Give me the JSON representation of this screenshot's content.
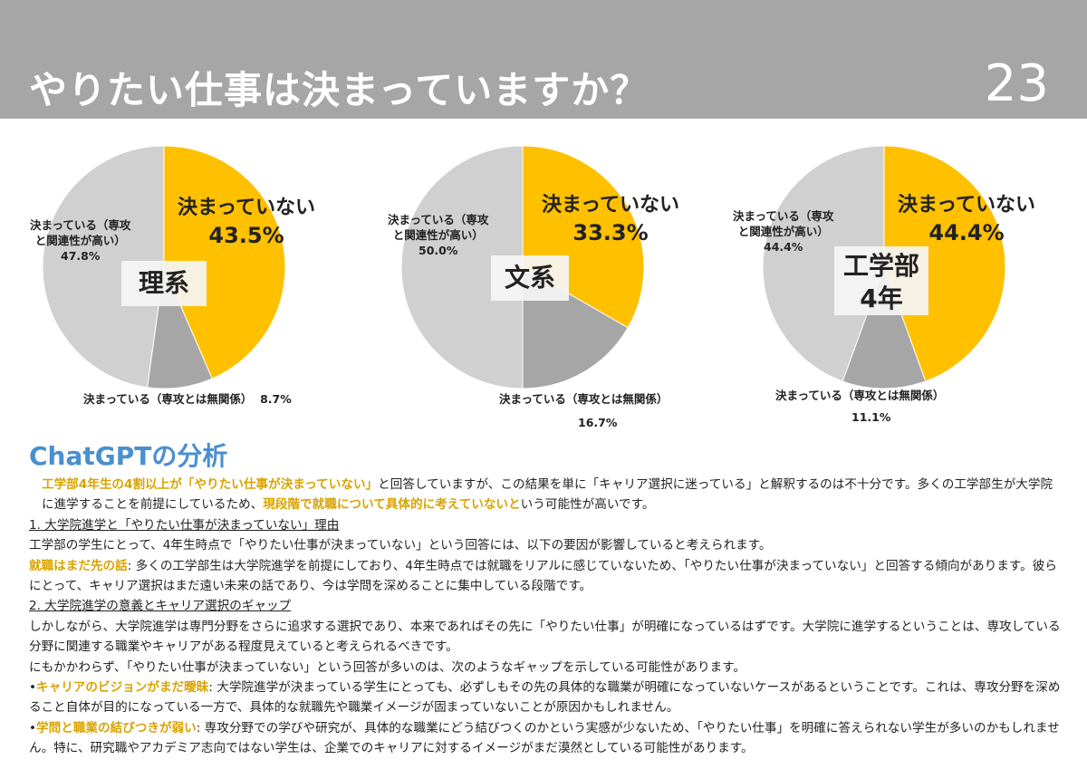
{
  "header": {
    "title": "やりたい仕事は決まっていますか？",
    "page_number": "23"
  },
  "colors": {
    "not_decided": "#ffc000",
    "unrelated": "#a6a6a6",
    "related": "#d0d0d0",
    "accent_text": "#d9a300",
    "analysis_title": "#4a8fd0"
  },
  "chart_data": [
    {
      "type": "pie",
      "category_label": "理系",
      "slices": [
        {
          "label": "決まっていない",
          "value": 43.5,
          "value_label": "43.5%"
        },
        {
          "label": "決まっている（専攻とは無関係）",
          "value": 8.7,
          "value_label": "8.7%"
        },
        {
          "label": "決まっている（専攻と関連性が高い）",
          "value": 47.8,
          "value_label": "47.8%"
        }
      ]
    },
    {
      "type": "pie",
      "category_label": "文系",
      "slices": [
        {
          "label": "決まっていない",
          "value": 33.3,
          "value_label": "33.3%"
        },
        {
          "label": "決まっている（専攻とは無関係）",
          "value": 16.7,
          "value_label": "16.7%"
        },
        {
          "label": "決まっている（専攻と関連性が高い）",
          "value": 50.0,
          "value_label": "50.0%"
        }
      ]
    },
    {
      "type": "pie",
      "category_label": "工学部 4年",
      "slices": [
        {
          "label": "決まっていない",
          "value": 44.4,
          "value_label": "44.4%"
        },
        {
          "label": "決まっている（専攻とは無関係）",
          "value": 11.1,
          "value_label": "11.1%"
        },
        {
          "label": "決まっている（専攻と関連性が高い）",
          "value": 44.4,
          "value_label": "44.4%"
        }
      ]
    }
  ],
  "labels": {
    "not_decided": "決まっていない",
    "related_line1": "決まっている（専攻",
    "related_line2": "と関連性が高い）",
    "unrelated": "決まっている（専攻とは無関係）",
    "cat1": "理系",
    "cat2": "文系",
    "cat3_line1": "工学部",
    "cat3_line2": "4年"
  },
  "analysis": {
    "title": "ChatGPTの分析",
    "p1_hl1": "工学部4年生の4割以上が「やりたい仕事が決まっていない」",
    "p1_t1": "と回答していますが、この結果を単に「キャリア選択に迷っている」と解釈するのは不十分です。多くの工学部生が大学院に進学することを前提にしているため、",
    "p1_hl2": "現段階で就職について具体的に考えていないと",
    "p1_t2": "いう可能性が高いです。",
    "h1": "1. 大学院進学と「やりたい仕事が決まっていない」理由",
    "p2": "工学部の学生にとって、4年生時点で「やりたい仕事が決まっていない」という回答には、以下の要因が影響していると考えられます。",
    "p3_hl": "就職はまだ先の話",
    "p3_t": ": 多くの工学部生は大学院進学を前提にしており、4年生時点では就職をリアルに感じていないため、「やりたい仕事が決まっていない」と回答する傾向があります。彼らにとって、キャリア選択はまだ遠い未来の話であり、今は学問を深めることに集中している段階です。",
    "h2": "2. 大学院進学の意義とキャリア選択のギャップ",
    "p4": "しかしながら、大学院進学は専門分野をさらに追求する選択であり、本来であればその先に「やりたい仕事」が明確になっているはずです。大学院に進学するということは、専攻している分野に関連する職業やキャリアがある程度見えていると考えられるべきです。",
    "p5": "にもかかわらず、「やりたい仕事が決まっていない」という回答が多いのは、次のようなギャップを示している可能性があります。",
    "bullet": "•",
    "b1_hl": "キャリアのビジョンがまだ曖昧",
    "b1_t": ": 大学院進学が決まっている学生にとっても、必ずしもその先の具体的な職業が明確になっていないケースがあるということです。これは、専攻分野を深めること自体が目的になっている一方で、具体的な就職先や職業イメージが固まっていないことが原因かもしれません。",
    "b2_hl": "学問と職業の結びつきが弱い",
    "b2_t": ": 専攻分野での学びや研究が、具体的な職業にどう結びつくのかという実感が少ないため、「やりたい仕事」を明確に答えられない学生が多いのかもしれません。特に、研究職やアカデミア志向ではない学生は、企業でのキャリアに対するイメージがまだ漠然としている可能性があります。"
  }
}
